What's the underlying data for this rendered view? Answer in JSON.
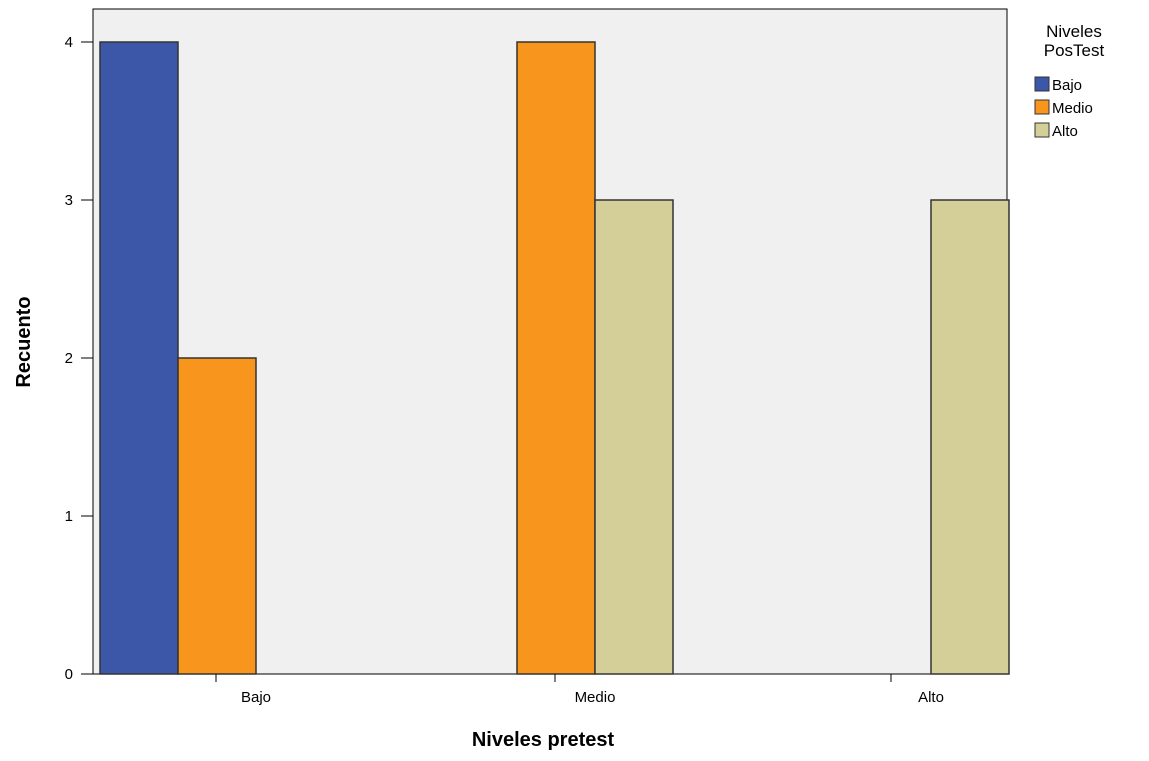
{
  "chart_data": {
    "type": "bar",
    "categories": [
      "Bajo",
      "Medio",
      "Alto"
    ],
    "series": [
      {
        "name": "Bajo",
        "values": [
          4,
          0,
          0
        ],
        "color": "#3c56a8"
      },
      {
        "name": "Medio",
        "values": [
          2,
          4,
          0
        ],
        "color": "#f8951d"
      },
      {
        "name": "Alto",
        "values": [
          0,
          3,
          3
        ],
        "color": "#d4cf98"
      }
    ],
    "xlabel": "Niveles pretest",
    "ylabel": "Recuento",
    "ylim": [
      0,
      4
    ],
    "yticks": [
      0,
      1,
      2,
      3,
      4
    ],
    "legend": {
      "title_lines": [
        "Niveles",
        "PosTest"
      ],
      "placement": "right"
    },
    "grid": false,
    "plot_background": "#f0f0f0",
    "outline_color": "#333333"
  }
}
